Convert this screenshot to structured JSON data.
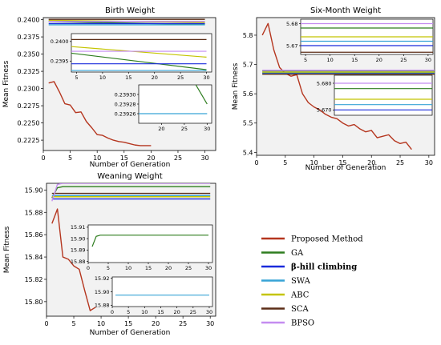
{
  "colors": {
    "Proposed Method": "#b5361f",
    "GA": "#2e7d1f",
    "β-hill climbing": "#1a2bdb",
    "SWA": "#37a3d6",
    "ABC": "#c4c400",
    "SCA": "#5b2d16",
    "BPSO": "#c48cf0"
  },
  "legend": {
    "position": "lower-right",
    "items": [
      "Proposed Method",
      "GA",
      "β-hill climbing",
      "SWA",
      "ABC",
      "SCA",
      "BPSO"
    ]
  },
  "chart_data": [
    {
      "type": "line",
      "title": "Birth Weight",
      "xlabel": "Number of Generation",
      "ylabel": "Mean Fitness",
      "xlim": [
        0,
        32
      ],
      "ylim": [
        0.221,
        0.2403
      ],
      "xticks": [
        0,
        5,
        10,
        15,
        20,
        25,
        30
      ],
      "yticks": [
        0.2225,
        0.225,
        0.2275,
        0.23,
        0.2325,
        0.235,
        0.2375,
        0.24
      ],
      "ytick_labels": [
        "0.2225",
        "0.2250",
        "0.2275",
        "0.2300",
        "0.2325",
        "0.2350",
        "0.2375",
        "0.2400"
      ],
      "series": [
        {
          "name": "Proposed Method",
          "x": [
            1,
            2,
            3,
            4,
            5,
            6,
            7,
            8,
            9,
            10,
            11,
            12,
            13,
            14,
            15,
            16,
            17,
            18,
            19,
            20
          ],
          "y": [
            0.2308,
            0.231,
            0.2295,
            0.2278,
            0.2276,
            0.2265,
            0.2266,
            0.2252,
            0.2243,
            0.2233,
            0.2232,
            0.2228,
            0.2225,
            0.2223,
            0.2222,
            0.222,
            0.2218,
            0.2217,
            0.2217,
            0.2217
          ]
        },
        {
          "name": "GA",
          "x": [
            1,
            30
          ],
          "y": [
            0.23975,
            0.23928
          ]
        },
        {
          "name": "β-hill climbing",
          "x": [
            1,
            30
          ],
          "y": [
            0.23943,
            0.23943
          ]
        },
        {
          "name": "SWA",
          "x": [
            1,
            30
          ],
          "y": [
            0.23926,
            0.23926
          ]
        },
        {
          "name": "ABC",
          "x": [
            1,
            30
          ],
          "y": [
            0.2399,
            0.2396
          ]
        },
        {
          "name": "SCA",
          "x": [
            1,
            30
          ],
          "y": [
            0.24005,
            0.24005
          ]
        },
        {
          "name": "BPSO",
          "x": [
            1,
            30
          ],
          "y": [
            0.23975,
            0.23975
          ]
        }
      ],
      "insets": [
        {
          "xlim": [
            4,
            31
          ],
          "ylim": [
            0.23922,
            0.2402
          ],
          "xticks": [
            5,
            10,
            15,
            20,
            25,
            30
          ],
          "yticks": [
            0.2395,
            0.24
          ],
          "ytick_labels": [
            "0.2395",
            "0.2400"
          ]
        },
        {
          "xlim": [
            15,
            31
          ],
          "ylim": [
            0.23924,
            0.23932
          ],
          "xticks": [
            20,
            25,
            30
          ],
          "yticks": [
            0.23926,
            0.23928,
            0.2393
          ],
          "ytick_labels": [
            "0.23926",
            "0.23928",
            "0.23930"
          ]
        }
      ]
    },
    {
      "type": "line",
      "title": "Six-Month Weight",
      "xlabel": "Number of Generation",
      "ylabel": "Mean Fitness",
      "xlim": [
        0,
        31
      ],
      "ylim": [
        5.39,
        5.86
      ],
      "xticks": [
        0,
        5,
        10,
        15,
        20,
        25,
        30
      ],
      "yticks": [
        5.4,
        5.5,
        5.6,
        5.7,
        5.8
      ],
      "ytick_labels": [
        "5.4",
        "5.5",
        "5.6",
        "5.7",
        "5.8"
      ],
      "series": [
        {
          "name": "Proposed Method",
          "x": [
            1,
            2,
            3,
            4,
            5,
            6,
            7,
            8,
            9,
            10,
            11,
            12,
            13,
            14,
            15,
            16,
            17,
            18,
            19,
            20,
            21,
            22,
            23,
            24,
            25,
            26,
            27
          ],
          "y": [
            5.8,
            5.84,
            5.75,
            5.69,
            5.67,
            5.66,
            5.665,
            5.6,
            5.57,
            5.555,
            5.545,
            5.53,
            5.52,
            5.515,
            5.5,
            5.49,
            5.495,
            5.48,
            5.47,
            5.475,
            5.45,
            5.455,
            5.46,
            5.44,
            5.43,
            5.435,
            5.41
          ]
        },
        {
          "name": "GA",
          "x": [
            1,
            31
          ],
          "y": [
            5.678,
            5.678
          ]
        },
        {
          "name": "β-hill climbing",
          "x": [
            1,
            31
          ],
          "y": [
            5.67,
            5.67
          ]
        },
        {
          "name": "SWA",
          "x": [
            1,
            31
          ],
          "y": [
            5.672,
            5.672
          ]
        },
        {
          "name": "ABC",
          "x": [
            1,
            31
          ],
          "y": [
            5.674,
            5.674
          ]
        },
        {
          "name": "SCA",
          "x": [
            1,
            31
          ],
          "y": [
            5.667,
            5.667
          ]
        },
        {
          "name": "BPSO",
          "x": [
            1,
            31
          ],
          "y": [
            5.68,
            5.68
          ]
        }
      ],
      "insets": [
        {
          "xlim": [
            4,
            31
          ],
          "ylim": [
            5.666,
            5.682
          ],
          "xticks": [
            5,
            10,
            15,
            20,
            25,
            30
          ],
          "yticks": [
            5.67,
            5.68
          ],
          "ytick_labels": [
            "5.67",
            "5.68"
          ]
        },
        {
          "xlim": [
            2,
            31
          ],
          "ylim": [
            5.668,
            5.683
          ],
          "xticks": [],
          "yticks": [
            5.67,
            5.68
          ],
          "ytick_labels": [
            "5.670",
            "5.680"
          ]
        }
      ]
    },
    {
      "type": "line",
      "title": "Weaning Weight",
      "xlabel": "Number of Generation",
      "ylabel": "Mean Fitness",
      "xlim": [
        0,
        31
      ],
      "ylim": [
        15.787,
        15.906
      ],
      "xticks": [
        0,
        5,
        10,
        15,
        20,
        25,
        30
      ],
      "yticks": [
        15.8,
        15.82,
        15.84,
        15.86,
        15.88,
        15.9
      ],
      "ytick_labels": [
        "15.80",
        "15.82",
        "15.84",
        "15.86",
        "15.88",
        "15.90"
      ],
      "series": [
        {
          "name": "Proposed Method",
          "x": [
            1,
            2,
            3,
            4,
            5,
            6,
            7,
            8,
            9
          ],
          "y": [
            15.87,
            15.883,
            15.84,
            15.838,
            15.832,
            15.829,
            15.81,
            15.792,
            15.795
          ]
        },
        {
          "name": "GA",
          "x": [
            1,
            2,
            3,
            30
          ],
          "y": [
            15.893,
            15.902,
            15.903,
            15.903
          ]
        },
        {
          "name": "β-hill climbing",
          "x": [
            1,
            30
          ],
          "y": [
            15.892,
            15.892
          ]
        },
        {
          "name": "SWA",
          "x": [
            1,
            30
          ],
          "y": [
            15.895,
            15.895
          ]
        },
        {
          "name": "ABC",
          "x": [
            1,
            30
          ],
          "y": [
            15.894,
            15.894
          ]
        },
        {
          "name": "SCA",
          "x": [
            1,
            30
          ],
          "y": [
            15.897,
            15.897
          ]
        },
        {
          "name": "BPSO",
          "x": [
            1,
            2,
            3,
            30
          ],
          "y": [
            15.89,
            15.905,
            15.906,
            15.906
          ]
        }
      ],
      "insets": [
        {
          "xlim": [
            0,
            31
          ],
          "ylim": [
            15.879,
            15.912
          ],
          "xticks": [
            0,
            5,
            10,
            15,
            20,
            25,
            30
          ],
          "yticks": [
            15.88,
            15.89,
            15.9,
            15.91
          ],
          "ytick_labels": [
            "15.88",
            "15.89",
            "15.90",
            "15.91"
          ]
        },
        {
          "xlim": [
            0,
            31
          ],
          "ylim": [
            15.878,
            15.922
          ],
          "xticks": [
            0,
            5,
            10,
            15,
            20,
            25,
            30
          ],
          "yticks": [
            15.88,
            15.9,
            15.92
          ],
          "ytick_labels": [
            "15.88",
            "15.90",
            "15.92"
          ]
        }
      ]
    }
  ]
}
